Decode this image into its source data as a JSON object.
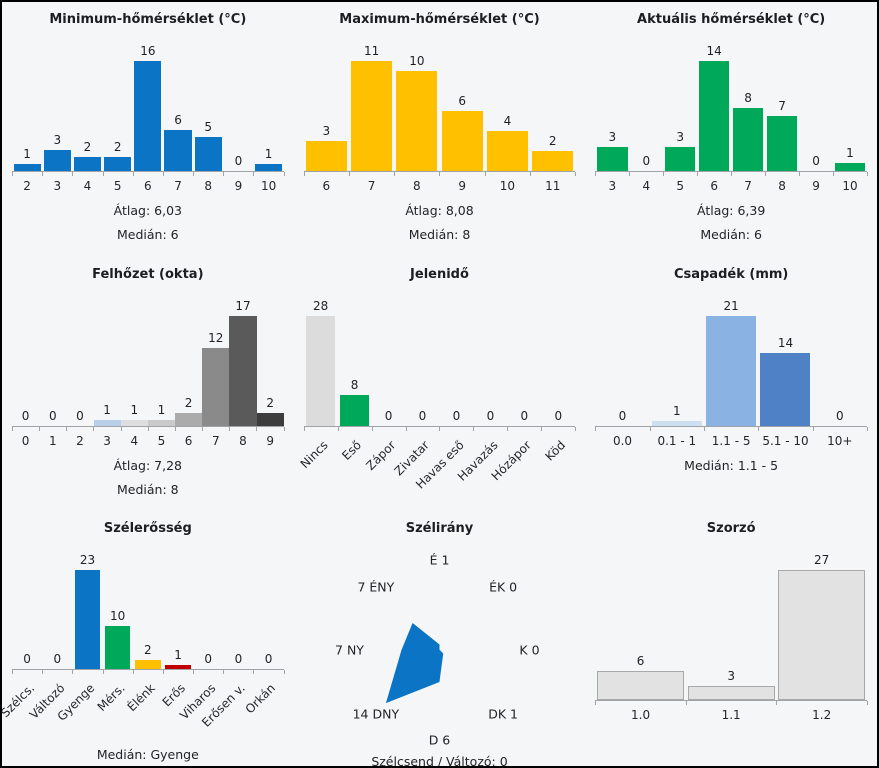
{
  "page": {
    "background": "#f5f6f8",
    "frame_color": "#000000",
    "text_color": "#222326",
    "axis_color": "#a0a4a8"
  },
  "chart_data": [
    {
      "type": "bar",
      "title": "Minimum-hőmérséklet (°C)",
      "categories": [
        "2",
        "3",
        "4",
        "5",
        "6",
        "7",
        "8",
        "9",
        "10"
      ],
      "values": [
        1,
        3,
        2,
        2,
        16,
        6,
        5,
        0,
        1
      ],
      "bar_color": "#0b74c4",
      "summary": [
        "Átlag: 6,03",
        "Medián: 6"
      ],
      "ylim": [
        0,
        16
      ],
      "grid": false
    },
    {
      "type": "bar",
      "title": "Maximum-hőmérséklet (°C)",
      "categories": [
        "6",
        "7",
        "8",
        "9",
        "10",
        "11"
      ],
      "values": [
        3,
        11,
        10,
        6,
        4,
        2
      ],
      "bar_color": "#ffc000",
      "summary": [
        "Átlag: 8,08",
        "Medián: 8"
      ],
      "ylim": [
        0,
        11
      ],
      "grid": false
    },
    {
      "type": "bar",
      "title": "Aktuális hőmérséklet (°C)",
      "categories": [
        "3",
        "4",
        "5",
        "6",
        "7",
        "8",
        "9",
        "10"
      ],
      "values": [
        3,
        0,
        3,
        14,
        8,
        7,
        0,
        1
      ],
      "bar_color": "#00a859",
      "summary": [
        "Átlag: 6,39",
        "Medián: 6"
      ],
      "ylim": [
        0,
        14
      ],
      "grid": false
    },
    {
      "type": "bar",
      "title": "Felhőzet (okta)",
      "categories": [
        "0",
        "1",
        "2",
        "3",
        "4",
        "5",
        "6",
        "7",
        "8",
        "9"
      ],
      "values": [
        0,
        0,
        0,
        1,
        1,
        1,
        2,
        12,
        17,
        2
      ],
      "bar_colors": [
        "#c6c6c6",
        "#c6c6c6",
        "#c6c6c6",
        "#b9cfe9",
        "#dedede",
        "#cacaca",
        "#ababab",
        "#8a8a8a",
        "#5a5a5a",
        "#3d3d3d"
      ],
      "summary": [
        "Átlag: 7,28",
        "Medián: 8"
      ],
      "ylim": [
        0,
        17
      ],
      "grid": false
    },
    {
      "type": "bar",
      "title": "Jelenidő",
      "categories": [
        "Nincs",
        "Eső",
        "Zápor",
        "Zivatar",
        "Havas eső",
        "Havazás",
        "Hózápor",
        "Köd"
      ],
      "values": [
        28,
        8,
        0,
        0,
        0,
        0,
        0,
        0
      ],
      "bar_colors": [
        "#dcdcdc",
        "#00a859",
        "#dcdcdc",
        "#dcdcdc",
        "#dcdcdc",
        "#dcdcdc",
        "#dcdcdc",
        "#dcdcdc"
      ],
      "rotated_labels": true,
      "summary": [],
      "ylim": [
        0,
        28
      ],
      "grid": false
    },
    {
      "type": "bar",
      "title": "Csapadék (mm)",
      "categories": [
        "0.0",
        "0.1 - 1",
        "1.1 - 5",
        "5.1 - 10",
        "10+"
      ],
      "values": [
        0,
        1,
        21,
        14,
        0
      ],
      "bar_colors": [
        "#cfdff2",
        "#cfdff2",
        "#8ab2e2",
        "#4f81c7",
        "#cfdff2"
      ],
      "summary": [
        "Medián: 1.1 - 5"
      ],
      "ylim": [
        0,
        21
      ],
      "grid": false
    },
    {
      "type": "bar",
      "title": "Szélerősség",
      "categories": [
        "Szélcs.",
        "Változó",
        "Gyenge",
        "Mérs.",
        "Élénk",
        "Erős",
        "Viharos",
        "Erősen v.",
        "Orkán"
      ],
      "values": [
        0,
        0,
        23,
        10,
        2,
        1,
        0,
        0,
        0
      ],
      "bar_colors": [
        "#0b74c4",
        "#0b74c4",
        "#0b74c4",
        "#00a859",
        "#ffc000",
        "#c00000",
        "#0b74c4",
        "#0b74c4",
        "#0b74c4"
      ],
      "rotated_labels": true,
      "summary": [
        "Medián: Gyenge"
      ],
      "ylim": [
        0,
        23
      ],
      "grid": false
    },
    {
      "type": "radar",
      "title": "Szélirány",
      "directions": [
        "É",
        "ÉK",
        "K",
        "DK",
        "D",
        "DNY",
        "NY",
        "ÉNY"
      ],
      "values": [
        1,
        0,
        0,
        1,
        6,
        14,
        7,
        7
      ],
      "labels": [
        "É 1",
        "ÉK 0",
        "K 0",
        "DK 1",
        "D 6",
        "14 DNY",
        "7 NY",
        "7 ÉNY"
      ],
      "fill_color": "#0b74c4",
      "footer": "Szélcsend / Változó: 0",
      "grid": false
    },
    {
      "type": "bar",
      "title": "Szorzó",
      "categories": [
        "1.0",
        "1.1",
        "1.2"
      ],
      "values": [
        6,
        3,
        27
      ],
      "bar_color": "#e2e2e2",
      "bar_border": "#a8a8a8",
      "summary": [],
      "ylim": [
        0,
        27
      ],
      "grid": false
    }
  ]
}
